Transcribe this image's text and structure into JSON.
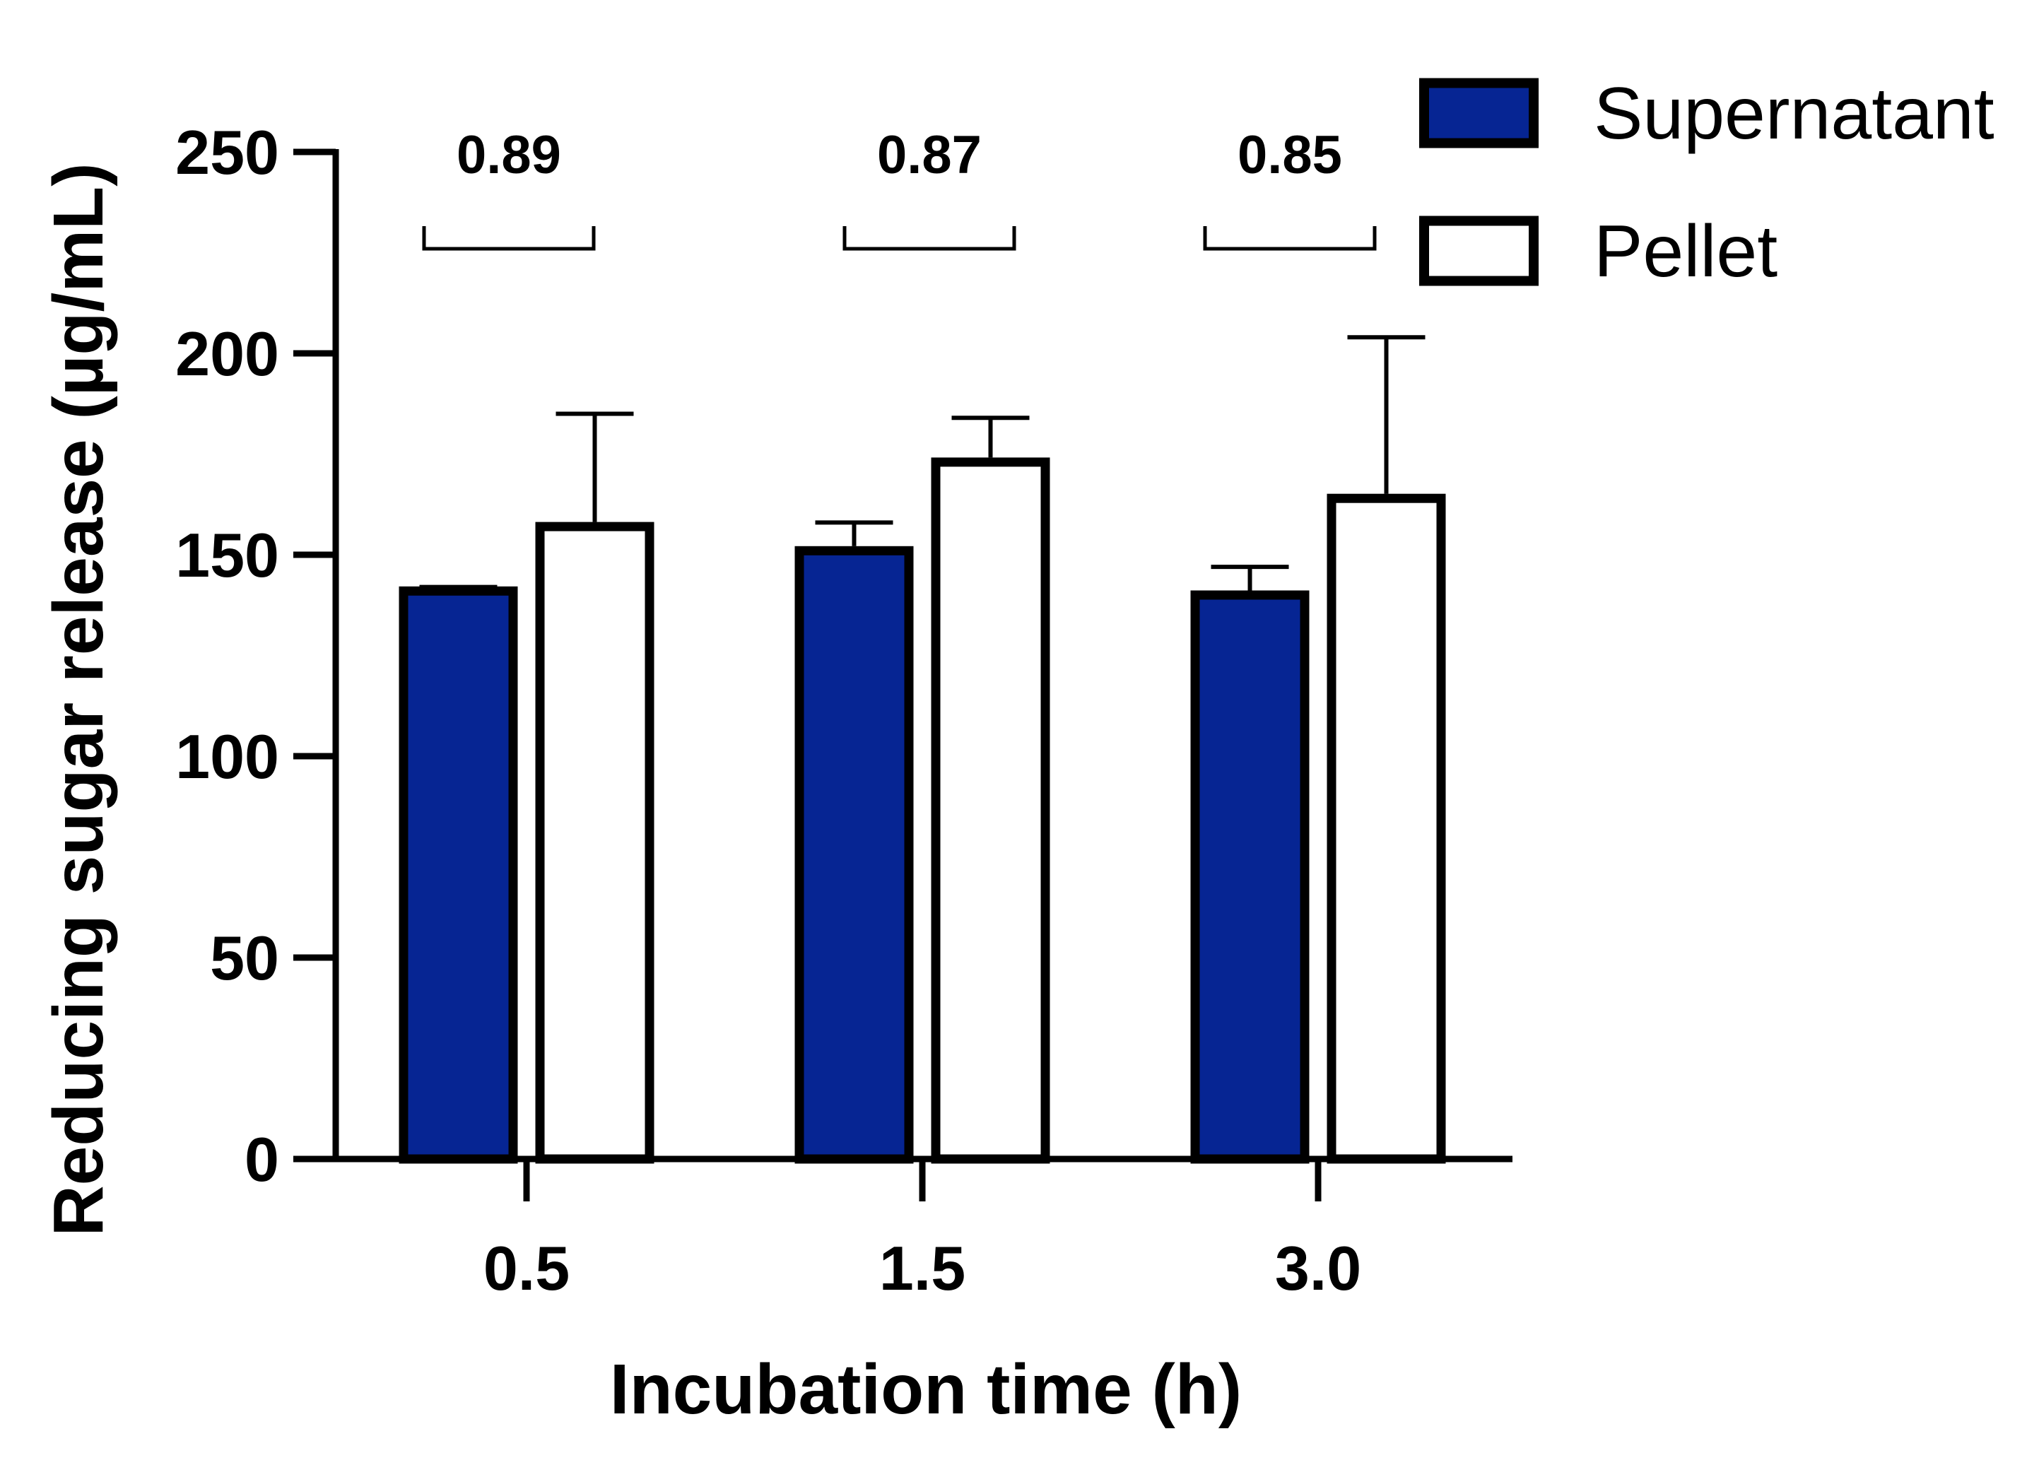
{
  "chart_data": {
    "type": "bar",
    "title": "",
    "xlabel": "Incubation time (h)",
    "ylabel": "Reducing sugar release (µg/mL)",
    "categories": [
      "0.5",
      "1.5",
      "3.0"
    ],
    "ylim": [
      0,
      250
    ],
    "yticks": [
      "0",
      "50",
      "100",
      "150",
      "200",
      "250"
    ],
    "grid": false,
    "legend_position": "top-right",
    "series": [
      {
        "name": "Supernatant",
        "values": [
          141,
          151,
          140
        ],
        "errors": [
          1,
          7,
          7
        ],
        "fill": "#062593",
        "stroke": "#000000"
      },
      {
        "name": "Pellet",
        "values": [
          157,
          173,
          164
        ],
        "errors": [
          28,
          11,
          40
        ],
        "fill": "#ffffff",
        "stroke": "#000000"
      }
    ],
    "annotations": [
      "0.89",
      "0.87",
      "0.85"
    ]
  }
}
